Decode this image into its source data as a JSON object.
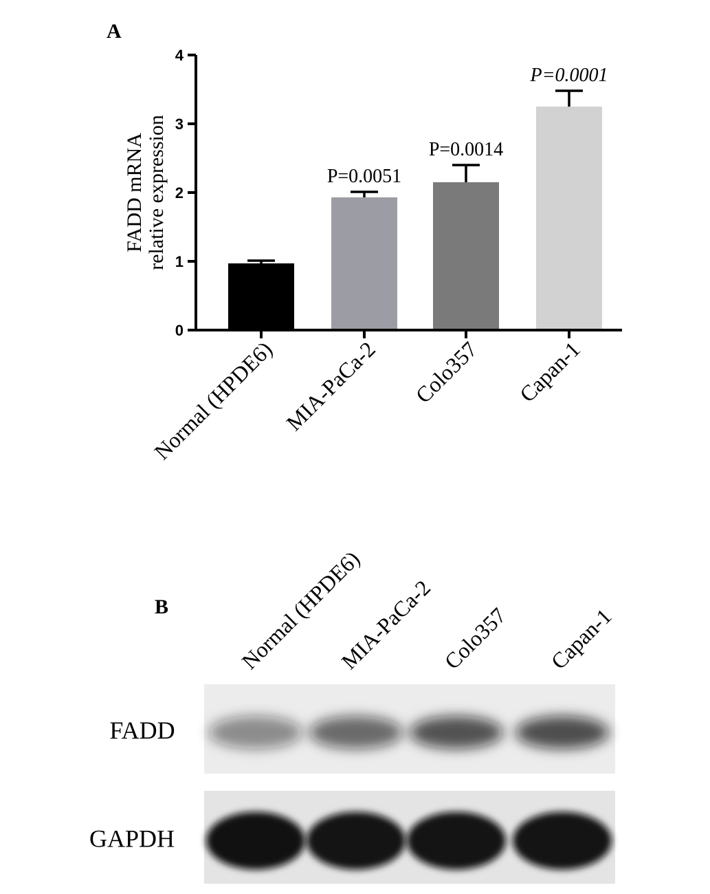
{
  "chart_data": {
    "type": "bar",
    "panel_label": "A",
    "ylabel": [
      "FADD mRNA",
      "relative expression"
    ],
    "categories": [
      "Normal (HPDE6)",
      "MIA-PaCa-2",
      "Colo357",
      "Capan-1"
    ],
    "values": [
      0.97,
      1.93,
      2.15,
      3.25
    ],
    "errors": [
      0.04,
      0.08,
      0.25,
      0.23
    ],
    "colors": [
      "#000000",
      "#9c9ca4",
      "#7a7a7a",
      "#d2d2d2"
    ],
    "annotations": [
      null,
      "P=0.0051",
      "P=0.0014",
      "P=0.0001"
    ],
    "ylim": [
      0,
      4
    ],
    "yticks": [
      0,
      1,
      2,
      3,
      4
    ]
  },
  "blot": {
    "panel_label": "B",
    "lanes": [
      "Normal (HPDE6)",
      "MIA-PaCa-2",
      "Colo357",
      "Capan-1"
    ],
    "rows": [
      "FADD",
      "GAPDH"
    ]
  }
}
